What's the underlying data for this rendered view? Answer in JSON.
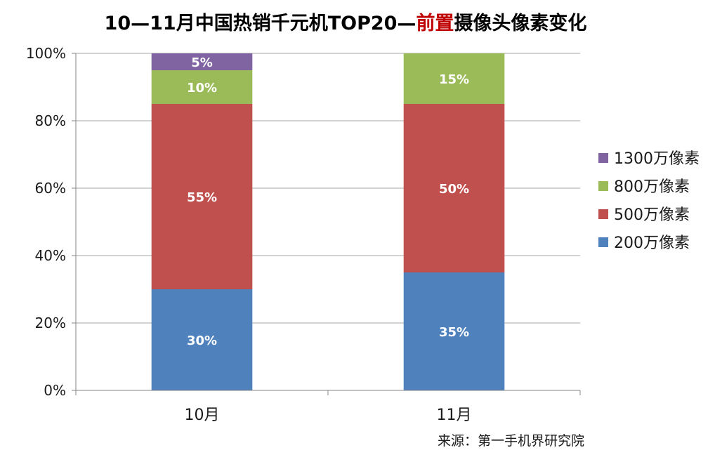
{
  "chart_data": {
    "type": "bar",
    "stacked": true,
    "title": {
      "prefix": "10—11月中国热销千元机TOP20—",
      "highlight": "前置",
      "suffix": "摄像头像素变化"
    },
    "categories": [
      "10月",
      "11月"
    ],
    "ylim": [
      0,
      100
    ],
    "y_ticks": [
      "0%",
      "20%",
      "40%",
      "60%",
      "80%",
      "100%"
    ],
    "grid": true,
    "legend_position": "right",
    "series": [
      {
        "name": "200万像素",
        "color": "#4f81bd",
        "values": [
          30,
          35
        ],
        "labels": [
          "30%",
          "35%"
        ]
      },
      {
        "name": "500万像素",
        "color": "#c0504d",
        "values": [
          55,
          50
        ],
        "labels": [
          "55%",
          "50%"
        ]
      },
      {
        "name": "800万像素",
        "color": "#9bbb59",
        "values": [
          10,
          15
        ],
        "labels": [
          "10%",
          "15%"
        ]
      },
      {
        "name": "1300万像素",
        "color": "#8064a2",
        "values": [
          5,
          0
        ],
        "labels": [
          "5%",
          ""
        ]
      }
    ],
    "annotation": "来源：第一手机界研究院",
    "colors": {
      "title_highlight": "#c00000",
      "grid": "#a6a6a6"
    }
  }
}
